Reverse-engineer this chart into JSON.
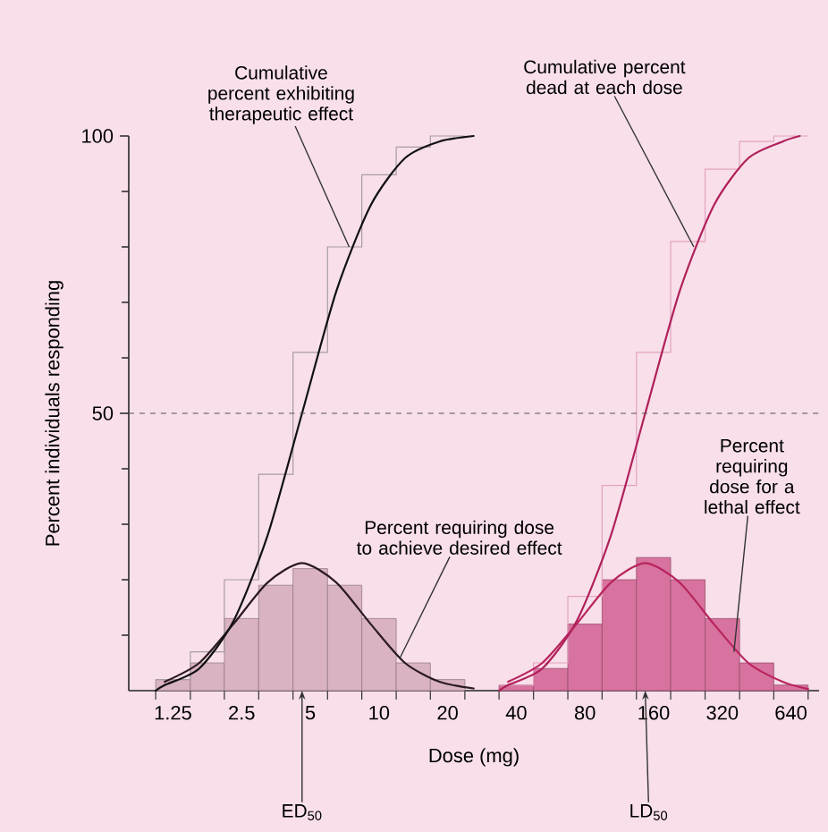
{
  "chart_data": {
    "type": "histogram",
    "xlabel": "Dose (mg)",
    "ylabel": "Percent individuals responding",
    "log": "x",
    "xlim": [
      0.8,
      850
    ],
    "ylim": [
      0,
      100
    ],
    "xticks": [
      {
        "value": 1.05,
        "label": null
      },
      1.25,
      {
        "value": 1.49,
        "label": null
      },
      {
        "value": 2.1,
        "label": null
      },
      2.5,
      {
        "value": 2.97,
        "label": null
      },
      {
        "value": 4.2,
        "label": null
      },
      5,
      {
        "value": 5.95,
        "label": null
      },
      {
        "value": 8.41,
        "label": null
      },
      10,
      {
        "value": 11.9,
        "label": null
      },
      {
        "value": 16.8,
        "label": null
      },
      20,
      {
        "value": 23.8,
        "label": null
      },
      {
        "value": 33.6,
        "label": null
      },
      40,
      {
        "value": 47.6,
        "label": null
      },
      {
        "value": 67.3,
        "label": null
      },
      80,
      {
        "value": 95.1,
        "label": null
      },
      {
        "value": 134.5,
        "label": null
      },
      160,
      {
        "value": 190,
        "label": null
      },
      {
        "value": 269,
        "label": null
      },
      320,
      {
        "value": 381,
        "label": null
      },
      {
        "value": 538,
        "label": null
      },
      640,
      {
        "value": 761,
        "label": null
      }
    ],
    "yticks": [
      {
        "value": 10,
        "label": null
      },
      {
        "value": 20,
        "label": null
      },
      {
        "value": 30,
        "label": null
      },
      {
        "value": 40,
        "label": null
      },
      50,
      {
        "value": 60,
        "label": null
      },
      {
        "value": 70,
        "label": null
      },
      {
        "value": 80,
        "label": null
      },
      {
        "value": 90,
        "label": null
      },
      100
    ],
    "marker": "none",
    "series": [
      {
        "color": "#d9b2c3",
        "bins": [
          1.05,
          1.49,
          2.1,
          2.97,
          4.2,
          5.95,
          8.41,
          11.9,
          16.8,
          23.8
        ],
        "values": [
          2,
          5,
          13,
          19,
          22,
          19,
          13,
          5,
          2
        ]
      },
      {
        "color": "#d8729e",
        "bins": [
          33.6,
          47.6,
          67.3,
          95.1,
          134.5,
          190,
          269,
          381,
          538,
          761
        ],
        "values": [
          1,
          4,
          12,
          20,
          24,
          20,
          13,
          5,
          1
        ]
      },
      {
        "type": "step",
        "color": "#a89ca2",
        "x": [
          1.05,
          1.49,
          2.1,
          2.97,
          4.2,
          5.95,
          8.41,
          11.9,
          16.8,
          23.8
        ],
        "values": [
          2,
          7,
          20,
          39,
          61,
          80,
          93,
          98,
          100,
          100
        ]
      },
      {
        "type": "step",
        "color": "#e3a3be",
        "x": [
          33.6,
          47.6,
          67.3,
          95.1,
          134.5,
          190,
          269,
          381,
          538,
          761
        ],
        "values": [
          1,
          5,
          17,
          37,
          61,
          81,
          94,
          99,
          100,
          100
        ]
      },
      {
        "type": "line",
        "color": "#2a1a20",
        "x": [
          1.15,
          1.63,
          2.3,
          3.25,
          4.6,
          6.5,
          9.2,
          13,
          18.4,
          26
        ],
        "values": [
          1.6,
          5,
          12,
          19.5,
          23,
          19.5,
          12,
          5,
          1.6,
          0.4
        ]
      },
      {
        "type": "line",
        "color": "#b8245e",
        "x": [
          36.8,
          52,
          73.5,
          104,
          147,
          208,
          294,
          416,
          588,
          760
        ],
        "values": [
          1.6,
          5,
          12,
          19.5,
          23,
          19.5,
          12,
          5,
          1.6,
          0.3
        ]
      },
      {
        "type": "line",
        "color": "#111111",
        "x": [
          1.05,
          1.15,
          1.63,
          2.3,
          3.25,
          4.6,
          6.5,
          9.2,
          13,
          18.4,
          26
        ],
        "values": [
          0,
          1,
          4,
          12.5,
          28,
          50,
          72,
          87.5,
          96,
          99,
          100
        ]
      },
      {
        "type": "line",
        "color": "#b0205a",
        "x": [
          33.6,
          36.8,
          52,
          73.5,
          104,
          147,
          208,
          294,
          416,
          588,
          700
        ],
        "values": [
          0,
          1,
          4,
          12.5,
          28,
          50,
          72,
          87.5,
          96,
          99,
          100
        ]
      }
    ],
    "ref_lines": [
      {
        "axis": "y",
        "value": 50,
        "color": "#555555",
        "line_style": "dashed"
      }
    ],
    "annotations": [
      {
        "text": "Cumulative percent exhibiting therapeutic effect",
        "x": 7.4,
        "y": 80
      },
      {
        "text": "Cumulative percent dead at each dose",
        "x": 240,
        "y": 80
      },
      {
        "text": "Percent requiring dose to achieve desired effect",
        "x": 12.4,
        "y": 6
      },
      {
        "text": "Percent requiring dose for a lethal effect",
        "x": 360,
        "y": 7
      },
      {
        "text": "ED$_{50}$",
        "x": 4.6,
        "y": 0
      },
      {
        "text": "LD$_{50}$",
        "x": 147,
        "y": 0
      }
    ]
  }
}
